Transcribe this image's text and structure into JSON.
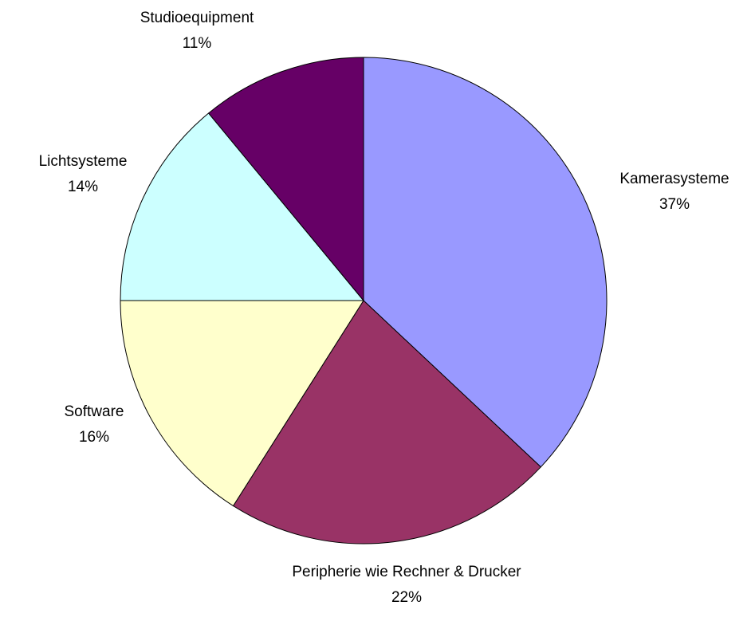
{
  "chart_data": {
    "type": "pie",
    "categories": [
      "Kamerasysteme",
      "Peripherie wie Rechner & Drucker",
      "Software",
      "Lichtsysteme",
      "Studioequipment"
    ],
    "values": [
      37,
      22,
      16,
      14,
      11
    ],
    "value_labels": [
      "37%",
      "22%",
      "16%",
      "14%",
      "11%"
    ],
    "colors": [
      "#9999ff",
      "#993366",
      "#ffffcc",
      "#ccffff",
      "#660066"
    ]
  }
}
